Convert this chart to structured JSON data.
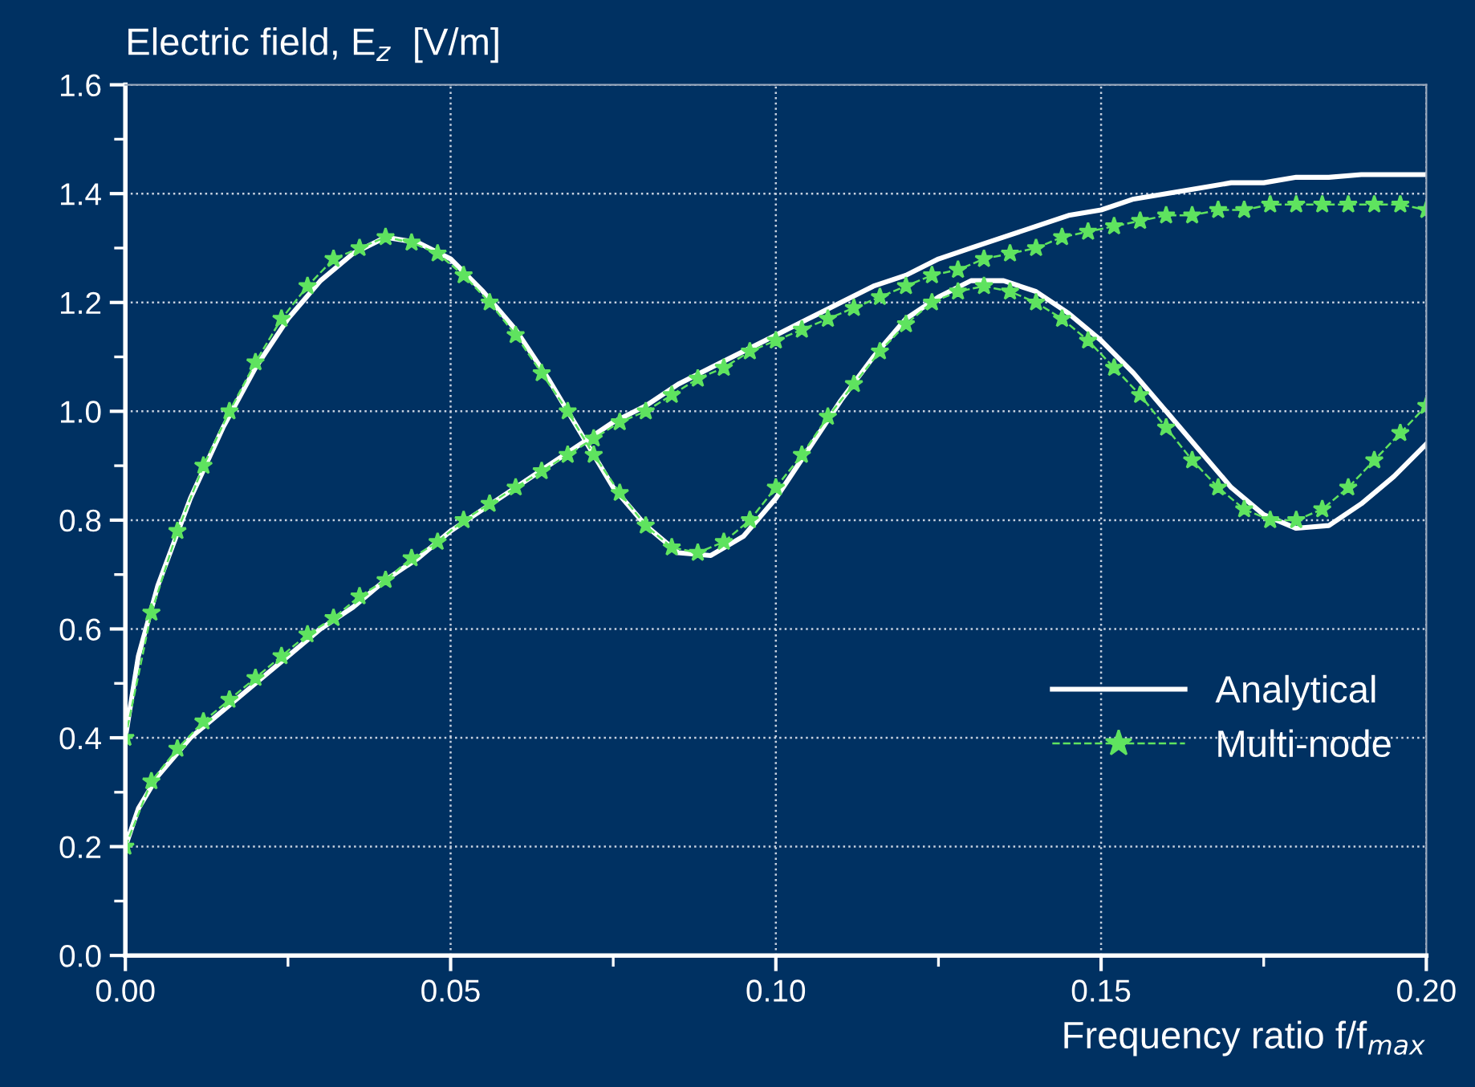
{
  "chart_data": {
    "type": "line",
    "ylabel": "Electric field, E$_{z}$  [V/m]",
    "xlabel": "Frequency ratio f/f$_{max}$",
    "xlim": [
      0,
      0.2
    ],
    "xticks": [
      {
        "value": 0,
        "label": "0.00"
      },
      {
        "value": 0.05,
        "label": "0.05"
      },
      {
        "value": 0.1,
        "label": "0.10"
      },
      {
        "value": 0.15,
        "label": "0.15"
      },
      {
        "value": 0.2,
        "label": "0.20"
      }
    ],
    "ylim": [
      0,
      1.6
    ],
    "yticks": [
      {
        "value": 0,
        "label": "0.0"
      },
      {
        "value": 0.2,
        "label": "0.2"
      },
      {
        "value": 0.4,
        "label": "0.4"
      },
      {
        "value": 0.6,
        "label": "0.6"
      },
      {
        "value": 0.8,
        "label": "0.8"
      },
      {
        "value": 1.0,
        "label": "1.0"
      },
      {
        "value": 1.2,
        "label": "1.2"
      },
      {
        "value": 1.4,
        "label": "1.4"
      },
      {
        "value": 1.6,
        "label": "1.6"
      }
    ],
    "grid": true,
    "legend": "bottom right",
    "series": [
      {
        "name": "Analytical",
        "color": "#ffffff",
        "marker": "none",
        "line_style": "solid",
        "x": [
          0,
          0.002,
          0.005,
          0.01,
          0.015,
          0.02,
          0.025,
          0.03,
          0.035,
          0.04,
          0.045,
          0.05,
          0.055,
          0.06,
          0.065,
          0.07,
          0.075,
          0.08,
          0.085,
          0.09,
          0.095,
          0.1,
          0.105,
          0.11,
          0.115,
          0.12,
          0.125,
          0.13,
          0.135,
          0.14,
          0.145,
          0.15,
          0.155,
          0.16,
          0.165,
          0.17,
          0.175,
          0.18,
          0.185,
          0.19,
          0.195,
          0.2
        ],
        "values": [
          0.4,
          0.55,
          0.68,
          0.84,
          0.97,
          1.08,
          1.17,
          1.24,
          1.29,
          1.32,
          1.31,
          1.28,
          1.22,
          1.15,
          1.06,
          0.96,
          0.86,
          0.79,
          0.74,
          0.735,
          0.77,
          0.84,
          0.93,
          1.02,
          1.1,
          1.17,
          1.21,
          1.24,
          1.24,
          1.22,
          1.18,
          1.13,
          1.07,
          1.0,
          0.93,
          0.86,
          0.81,
          0.785,
          0.79,
          0.83,
          0.88,
          0.94
        ]
      },
      {
        "color": "#ffffff",
        "marker": "none",
        "line_style": "solid",
        "x": [
          0,
          0.002,
          0.005,
          0.01,
          0.015,
          0.02,
          0.025,
          0.03,
          0.035,
          0.04,
          0.045,
          0.05,
          0.055,
          0.06,
          0.065,
          0.07,
          0.075,
          0.08,
          0.085,
          0.09,
          0.095,
          0.1,
          0.105,
          0.11,
          0.115,
          0.12,
          0.125,
          0.13,
          0.135,
          0.14,
          0.145,
          0.15,
          0.155,
          0.16,
          0.165,
          0.17,
          0.175,
          0.18,
          0.185,
          0.19,
          0.195,
          0.2
        ],
        "values": [
          0.2,
          0.27,
          0.33,
          0.4,
          0.45,
          0.5,
          0.55,
          0.6,
          0.64,
          0.69,
          0.73,
          0.78,
          0.82,
          0.86,
          0.9,
          0.94,
          0.98,
          1.01,
          1.05,
          1.08,
          1.11,
          1.14,
          1.17,
          1.2,
          1.23,
          1.25,
          1.28,
          1.3,
          1.32,
          1.34,
          1.36,
          1.37,
          1.39,
          1.4,
          1.41,
          1.42,
          1.42,
          1.43,
          1.43,
          1.435,
          1.435,
          1.435
        ]
      },
      {
        "name": "Multi-node",
        "color": "#5fe35f",
        "marker": "star",
        "line_style": "dashed",
        "x": [
          0,
          0.004,
          0.008,
          0.012,
          0.016,
          0.02,
          0.024,
          0.028,
          0.032,
          0.036,
          0.04,
          0.044,
          0.048,
          0.052,
          0.056,
          0.06,
          0.064,
          0.068,
          0.072,
          0.076,
          0.08,
          0.084,
          0.088,
          0.092,
          0.096,
          0.1,
          0.104,
          0.108,
          0.112,
          0.116,
          0.12,
          0.124,
          0.128,
          0.132,
          0.136,
          0.14,
          0.144,
          0.148,
          0.152,
          0.156,
          0.16,
          0.164,
          0.168,
          0.172,
          0.176,
          0.18,
          0.184,
          0.188,
          0.192,
          0.196,
          0.2
        ],
        "values": [
          0.4,
          0.63,
          0.78,
          0.9,
          1.0,
          1.09,
          1.17,
          1.23,
          1.28,
          1.3,
          1.32,
          1.31,
          1.29,
          1.25,
          1.2,
          1.14,
          1.07,
          1.0,
          0.92,
          0.85,
          0.79,
          0.75,
          0.74,
          0.76,
          0.8,
          0.86,
          0.92,
          0.99,
          1.05,
          1.11,
          1.16,
          1.2,
          1.22,
          1.23,
          1.22,
          1.2,
          1.17,
          1.13,
          1.08,
          1.03,
          0.97,
          0.91,
          0.86,
          0.82,
          0.8,
          0.8,
          0.82,
          0.86,
          0.91,
          0.96,
          1.01
        ]
      },
      {
        "color": "#5fe35f",
        "marker": "star",
        "line_style": "dashed",
        "x": [
          0,
          0.004,
          0.008,
          0.012,
          0.016,
          0.02,
          0.024,
          0.028,
          0.032,
          0.036,
          0.04,
          0.044,
          0.048,
          0.052,
          0.056,
          0.06,
          0.064,
          0.068,
          0.072,
          0.076,
          0.08,
          0.084,
          0.088,
          0.092,
          0.096,
          0.1,
          0.104,
          0.108,
          0.112,
          0.116,
          0.12,
          0.124,
          0.128,
          0.132,
          0.136,
          0.14,
          0.144,
          0.148,
          0.152,
          0.156,
          0.16,
          0.164,
          0.168,
          0.172,
          0.176,
          0.18,
          0.184,
          0.188,
          0.192,
          0.196,
          0.2
        ],
        "values": [
          0.2,
          0.32,
          0.38,
          0.43,
          0.47,
          0.51,
          0.55,
          0.59,
          0.62,
          0.66,
          0.69,
          0.73,
          0.76,
          0.8,
          0.83,
          0.86,
          0.89,
          0.92,
          0.95,
          0.98,
          1.0,
          1.03,
          1.06,
          1.08,
          1.11,
          1.13,
          1.15,
          1.17,
          1.19,
          1.21,
          1.23,
          1.25,
          1.26,
          1.28,
          1.29,
          1.3,
          1.32,
          1.33,
          1.34,
          1.35,
          1.36,
          1.36,
          1.37,
          1.37,
          1.38,
          1.38,
          1.38,
          1.38,
          1.38,
          1.38,
          1.37
        ]
      }
    ]
  }
}
